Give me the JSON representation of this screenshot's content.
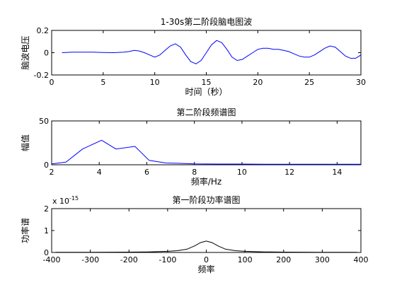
{
  "figure": {
    "background": "#ffffff",
    "axes_color": "#000000"
  },
  "chart_data": [
    {
      "type": "line",
      "title": "1-30s第二阶段脑电图波",
      "xlabel": "时间（秒）",
      "ylabel": "脑波电压",
      "xlim": [
        0,
        30
      ],
      "ylim": [
        -0.2,
        0.2
      ],
      "xticks": [
        0,
        5,
        10,
        15,
        20,
        25,
        30
      ],
      "xtick_labels": [
        "0",
        "5",
        "10",
        "15",
        "20",
        "25",
        "30"
      ],
      "yticks": [
        -0.2,
        0,
        0.2
      ],
      "ytick_labels": [
        "-0.2",
        "0",
        "0.2"
      ],
      "grid": false,
      "series": [
        {
          "color": "#0000ff",
          "x": [
            1,
            2,
            3,
            4,
            5,
            6,
            7,
            7.5,
            8,
            8.5,
            9,
            9.5,
            10,
            10.5,
            11,
            11.5,
            12,
            12.5,
            13,
            13.5,
            14,
            14.5,
            15,
            15.5,
            16,
            16.5,
            17,
            17.5,
            18,
            18.5,
            19,
            19.5,
            20,
            20.5,
            21,
            21.5,
            22,
            22.5,
            23,
            23.5,
            24,
            24.5,
            25,
            25.5,
            26,
            26.5,
            27,
            27.5,
            28,
            28.5,
            29,
            29.5,
            30
          ],
          "y": [
            0.0,
            0.005,
            0.005,
            0.005,
            0.002,
            0.0,
            0.005,
            0.01,
            0.02,
            0.015,
            0.0,
            -0.02,
            -0.04,
            -0.02,
            0.02,
            0.06,
            0.08,
            0.05,
            -0.02,
            -0.08,
            -0.1,
            -0.07,
            0.0,
            0.07,
            0.11,
            0.09,
            0.03,
            -0.04,
            -0.07,
            -0.06,
            -0.03,
            0.0,
            0.03,
            0.04,
            0.04,
            0.03,
            0.03,
            0.02,
            0.01,
            -0.01,
            -0.03,
            -0.04,
            -0.04,
            -0.02,
            0.01,
            0.04,
            0.06,
            0.05,
            0.01,
            -0.03,
            -0.05,
            -0.05,
            -0.02
          ]
        }
      ]
    },
    {
      "type": "line",
      "title": "第二阶段频谱图",
      "xlabel": "频率/Hz",
      "ylabel": "幅值",
      "xlim": [
        2,
        15
      ],
      "ylim": [
        0,
        50
      ],
      "xticks": [
        2,
        4,
        6,
        8,
        10,
        12,
        14
      ],
      "xtick_labels": [
        "2",
        "4",
        "6",
        "8",
        "10",
        "12",
        "14"
      ],
      "yticks": [
        0,
        50
      ],
      "ytick_labels": [
        "0",
        "50"
      ],
      "grid": false,
      "series": [
        {
          "color": "#0000ff",
          "x": [
            2,
            2.6,
            3.3,
            4.1,
            4.7,
            5.5,
            6.1,
            6.8,
            7.5,
            8,
            9,
            10,
            11,
            12,
            13,
            14,
            15
          ],
          "y": [
            1,
            3,
            18,
            28,
            18,
            21,
            5,
            2,
            1.5,
            1,
            0.8,
            0.8,
            0.6,
            0.6,
            0.6,
            0.6,
            0.6
          ]
        }
      ]
    },
    {
      "type": "line",
      "title": "第一阶段功率谱图",
      "xlabel": "频率",
      "ylabel": "功率谱",
      "multiplier": "x 10",
      "multiplier_exponent": "-15",
      "xlim": [
        -400,
        400
      ],
      "ylim": [
        0,
        2
      ],
      "xticks": [
        -400,
        -300,
        -200,
        -100,
        0,
        100,
        200,
        300,
        400
      ],
      "xtick_labels": [
        "-400",
        "-300",
        "-200",
        "-100",
        "0",
        "100",
        "200",
        "300",
        "400"
      ],
      "yticks": [
        0,
        1,
        2
      ],
      "ytick_labels": [
        "0",
        "1",
        "2"
      ],
      "grid": false,
      "series": [
        {
          "color": "#000000",
          "x": [
            -390,
            -300,
            -200,
            -150,
            -100,
            -75,
            -50,
            -30,
            -15,
            0,
            15,
            30,
            50,
            75,
            100,
            150,
            200,
            300,
            390
          ],
          "y": [
            0.005,
            0.008,
            0.015,
            0.025,
            0.05,
            0.08,
            0.15,
            0.3,
            0.45,
            0.52,
            0.45,
            0.3,
            0.15,
            0.08,
            0.05,
            0.025,
            0.015,
            0.008,
            0.005
          ]
        }
      ]
    }
  ]
}
